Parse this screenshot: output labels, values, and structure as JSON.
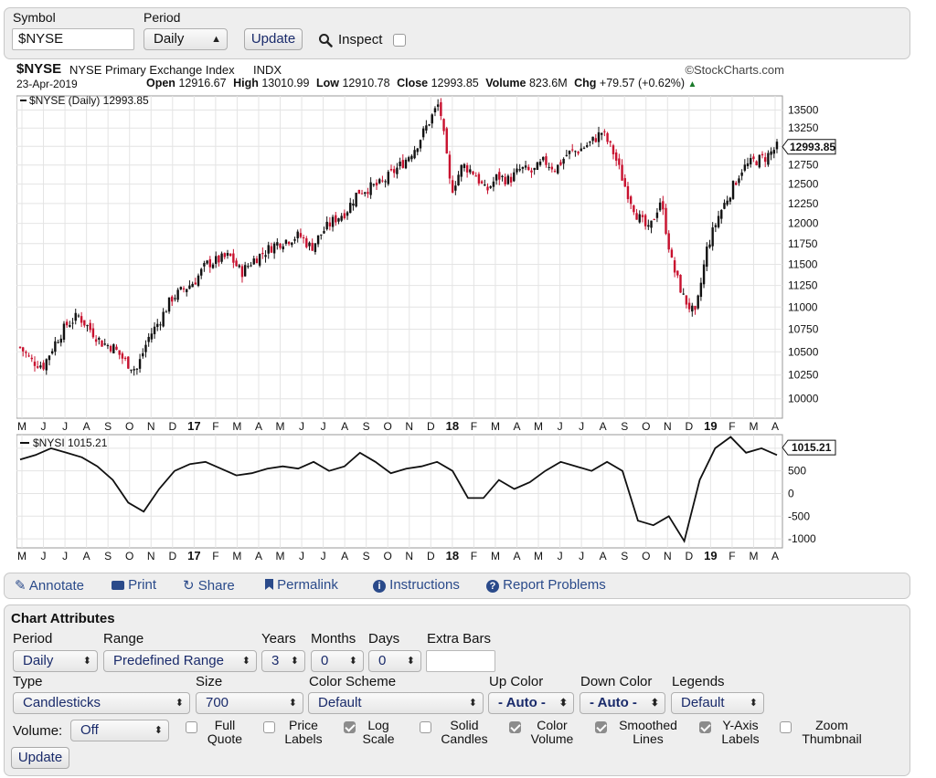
{
  "top_form": {
    "symbol_label": "Symbol",
    "symbol_value": "$NYSE",
    "period_label": "Period",
    "period_value": "Daily",
    "update_label": "Update",
    "inspect_label": "Inspect"
  },
  "chart_header": {
    "symbol": "$NYSE",
    "name": "NYSE Primary Exchange Index",
    "exchange": "INDX",
    "brand": "©StockCharts.com",
    "date": "23-Apr-2019",
    "open_label": "Open",
    "open_value": "12916.67",
    "high_label": "High",
    "high_value": "13010.99",
    "low_label": "Low",
    "low_value": "12910.78",
    "close_label": "Close",
    "close_value": "12993.85",
    "volume_label": "Volume",
    "volume_value": "823.6M",
    "chg_label": "Chg",
    "chg_value": "+79.57 (+0.62%)"
  },
  "chart_data": [
    {
      "type": "candlestick",
      "legend": "$NYSE (Daily) 12993.85",
      "last_value_label": "12993.85",
      "y_ticks": [
        "13500",
        "13250",
        "13000",
        "12750",
        "12500",
        "12250",
        "12000",
        "11750",
        "11500",
        "11250",
        "11000",
        "10750",
        "10500",
        "10250",
        "10000"
      ],
      "ylim": [
        9800,
        13700
      ],
      "log_scale": true,
      "x_ticks": [
        "M",
        "J",
        "J",
        "A",
        "S",
        "O",
        "N",
        "D",
        "17",
        "F",
        "M",
        "A",
        "M",
        "J",
        "J",
        "A",
        "S",
        "O",
        "N",
        "D",
        "18",
        "F",
        "M",
        "A",
        "M",
        "J",
        "J",
        "A",
        "S",
        "O",
        "N",
        "D",
        "19",
        "F",
        "M",
        "A"
      ],
      "close_series": [
        10550,
        10400,
        10350,
        10600,
        10800,
        10900,
        10750,
        10600,
        10550,
        10400,
        10300,
        10650,
        10850,
        11100,
        11200,
        11300,
        11500,
        11550,
        11600,
        11400,
        11550,
        11650,
        11750,
        11800,
        11850,
        11700,
        11900,
        12050,
        12150,
        12400,
        12450,
        12500,
        12650,
        12800,
        13000,
        13300,
        13600,
        12400,
        12750,
        12650,
        12400,
        12600,
        12550,
        12700,
        12650,
        12800,
        12700,
        12900,
        12950,
        13050,
        13200,
        12900,
        12450,
        12100,
        11900,
        12300,
        11500,
        11100,
        10900,
        11700,
        12100,
        12400,
        12700,
        12800,
        12850,
        12990
      ]
    },
    {
      "type": "line",
      "legend": "$NYSI 1015.21",
      "last_value_label": "1015.21",
      "y_ticks": [
        "1000",
        "500",
        "0",
        "-500",
        "-1000"
      ],
      "ylim": [
        -1200,
        1300
      ],
      "values": [
        750,
        850,
        1000,
        900,
        800,
        600,
        300,
        -200,
        -400,
        100,
        500,
        650,
        700,
        550,
        400,
        450,
        550,
        600,
        550,
        700,
        500,
        600,
        900,
        700,
        450,
        550,
        600,
        700,
        500,
        -100,
        -100,
        300,
        100,
        250,
        500,
        700,
        600,
        500,
        700,
        500,
        -600,
        -700,
        -500,
        -1050,
        300,
        1000,
        1250,
        900,
        1000,
        850
      ]
    }
  ],
  "toolbar": {
    "annotate": "Annotate",
    "print": "Print",
    "share": "Share",
    "permalink": "Permalink",
    "instructions": "Instructions",
    "report": "Report Problems"
  },
  "attrs": {
    "title": "Chart Attributes",
    "period_label": "Period",
    "period_value": "Daily",
    "range_label": "Range",
    "range_value": "Predefined Range",
    "years_label": "Years",
    "years_value": "3",
    "months_label": "Months",
    "months_value": "0",
    "days_label": "Days",
    "days_value": "0",
    "extra_bars_label": "Extra Bars",
    "extra_bars_value": "",
    "type_label": "Type",
    "type_value": "Candlesticks",
    "size_label": "Size",
    "size_value": "700",
    "scheme_label": "Color Scheme",
    "scheme_value": "Default",
    "up_color_label": "Up Color",
    "up_color_value": "- Auto -",
    "down_color_label": "Down Color",
    "down_color_value": "- Auto -",
    "legends_label": "Legends",
    "legends_value": "Default",
    "volume_label": "Volume:",
    "volume_value": "Off",
    "full_quote": [
      "Full",
      "Quote"
    ],
    "price_labels": [
      "Price",
      "Labels"
    ],
    "log_scale": [
      "Log",
      "Scale"
    ],
    "solid_candles": [
      "Solid",
      "Candles"
    ],
    "color_volume": [
      "Color",
      "Volume"
    ],
    "smoothed_lines": [
      "Smoothed",
      "Lines"
    ],
    "y_axis_labels": [
      "Y-Axis",
      "Labels"
    ],
    "zoom_thumbnail": [
      "Zoom",
      "Thumbnail"
    ],
    "update_label": "Update"
  },
  "colors": {
    "up": "#111111",
    "down": "#c8102e",
    "accent": "#2a4a8a"
  }
}
